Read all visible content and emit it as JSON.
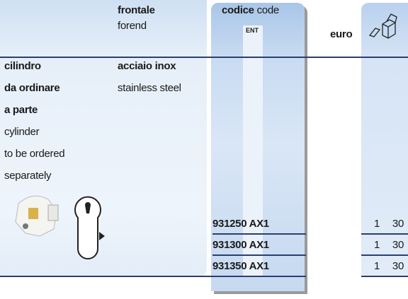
{
  "header": {
    "frontale": "frontale",
    "forend": "forend",
    "codice": "codice",
    "code": "code",
    "ent": "ENT",
    "euro": "euro"
  },
  "description": {
    "it": [
      "cilindro",
      "da ordinare",
      "a parte"
    ],
    "en": [
      "cylinder",
      "to be ordered",
      "separately"
    ]
  },
  "material": {
    "it": "acciaio inox",
    "en": "stainless steel"
  },
  "rows": [
    {
      "code": "931250 AX1",
      "qty": 1,
      "pack": 30
    },
    {
      "code": "931300 AX1",
      "qty": 1,
      "pack": 30
    },
    {
      "code": "931350 AX1",
      "qty": 1,
      "pack": 30
    }
  ]
}
